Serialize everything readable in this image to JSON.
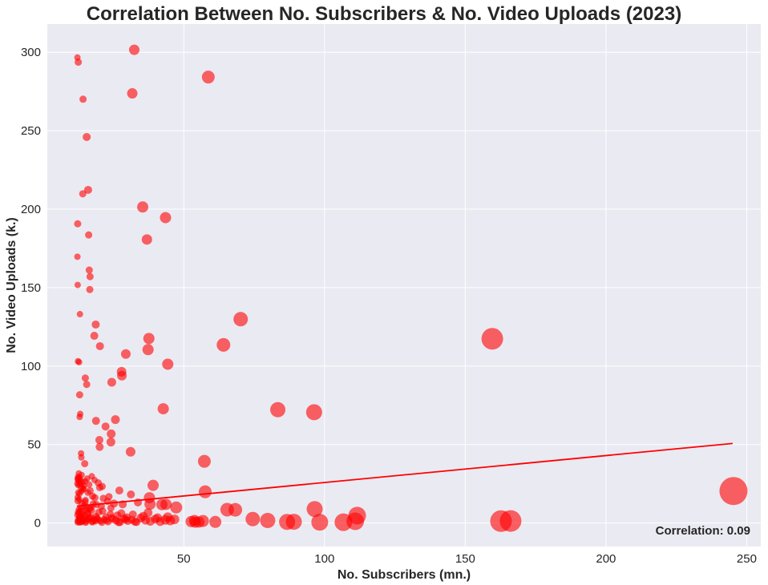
{
  "chart_data": {
    "type": "scatter",
    "title": "Correlation Between No. Subscribers & No. Video Uploads (2023)",
    "xlabel": "No. Subscribers (mn.)",
    "ylabel": "No. Video Uploads (k.)",
    "xlim": [
      1.5,
      255
    ],
    "ylim": [
      -15,
      318
    ],
    "xticks": [
      50,
      100,
      150,
      200,
      250
    ],
    "yticks": [
      0,
      50,
      100,
      150,
      200,
      250,
      300
    ],
    "grid": true,
    "background_color": "#EAEAF2",
    "point_color": "#FF0000",
    "trend_color": "#FF0000",
    "annotation": "Correlation: 0.09",
    "trendline": {
      "x": [
        12,
        245
      ],
      "y": [
        10.7,
        50.7
      ]
    },
    "series": [
      {
        "x": [
          12.5,
          13.3,
          14.2,
          15.1,
          16.3,
          17.5,
          18.2,
          19.1,
          20.4,
          21.8,
          23.1,
          24.6,
          25.9,
          27.3,
          28.8,
          30.1,
          31.5,
          33.2,
          34.8,
          36.4,
          38.1,
          39.9,
          41.6,
          43.4,
          45.2,
          46.7,
          13.1,
          14.8,
          16.9,
          18.7,
          22.3,
          26.4,
          29.7,
          35.6,
          40.7,
          44.3,
          12.9,
          13.8,
          15.6,
          17.2,
          19.8,
          21.2,
          23.9,
          27.8,
          31.9,
          37.3,
          15.4,
          16.5,
          18.9,
          20.7,
          24.1,
          12.4,
          13.7,
          14.9,
          17.8,
          22.9,
          25.2,
          28.3,
          33.7,
          12.3,
          12.6,
          12.8,
          13.0,
          13.3,
          13.6,
          13.9,
          14.3,
          14.7,
          15.2,
          15.8,
          16.6,
          17.4,
          18.6,
          19.4,
          20.9,
          22.6,
          24.4,
          26.8,
          29.3,
          32.6,
          12.2,
          12.4,
          12.7,
          13.1,
          13.5,
          14.0,
          14.6,
          15.3,
          16.1,
          17.0,
          52.6,
          54.1,
          56.8,
          61.2,
          53.8,
          55.4,
          12.3,
          12.9,
          13.6,
          14.5,
          15.9,
          17.6,
          20.1,
          23.4,
          27.1,
          31.2,
          12.2,
          12.3,
          12.4,
          12.5,
          12.7,
          12.8,
          13.0,
          13.2,
          13.4,
          13.7,
          14.1,
          14.5,
          15.0,
          15.7,
          16.4,
          17.3,
          18.3,
          19.6,
          21.0,
          12.5,
          14.2,
          16.7,
          12.8,
          15.1,
          18.4,
          21.4
        ],
        "y": [
          1.5,
          0.9,
          2.4,
          1.2,
          2.8,
          0.7,
          1.9,
          3.1,
          1.4,
          2.2,
          0.8,
          2.6,
          1.7,
          0.5,
          2.9,
          1.3,
          2.1,
          0.6,
          3.2,
          1.8,
          1.1,
          2.5,
          0.9,
          2.0,
          1.6,
          2.3,
          3.8,
          4.6,
          3.5,
          4.2,
          3.9,
          4.8,
          3.6,
          4.3,
          3.3,
          3.7,
          5.9,
          7.2,
          6.4,
          8.1,
          6.9,
          7.6,
          5.7,
          6.2,
          5.4,
          6.6,
          10.3,
          9.1,
          11.8,
          10.7,
          9.6,
          14.2,
          12.6,
          13.4,
          12.1,
          13.8,
          12.4,
          11.9,
          13.1,
          0.4,
          1.8,
          3.4,
          0.3,
          2.7,
          4.1,
          0.6,
          1.6,
          3.0,
          0.2,
          2.0,
          3.6,
          0.9,
          1.3,
          2.5,
          0.4,
          1.7,
          3.3,
          0.5,
          2.2,
          0.8,
          5.1,
          6.8,
          8.6,
          7.9,
          9.4,
          5.6,
          10.9,
          8.3,
          6.1,
          9.8,
          0.9,
          0.5,
          1.3,
          0.7,
          1.6,
          0.6,
          16.4,
          18.6,
          20.2,
          21.9,
          19.3,
          17.1,
          22.6,
          16.8,
          20.7,
          18.2,
          25.1,
          27.8,
          29.4,
          24.2,
          31.6,
          26.3,
          28.9,
          24.7,
          27.1,
          30.6,
          25.9,
          23.8,
          26.6,
          28.3,
          24.5,
          29.8,
          27.4,
          25.6,
          23.3,
          19.4,
          21.3,
          20.6,
          15.2,
          14.6,
          16.1,
          15.7
        ],
        "sizes": [
          9,
          9,
          9,
          9,
          9,
          9,
          9,
          9,
          9,
          9,
          9,
          10,
          10,
          10,
          10,
          10,
          10,
          10,
          11,
          11,
          11,
          11,
          11,
          12,
          12,
          12,
          9,
          9,
          9,
          9,
          9,
          10,
          10,
          11,
          11,
          12,
          9,
          9,
          9,
          9,
          9,
          9,
          9,
          10,
          10,
          11,
          9,
          9,
          9,
          9,
          9,
          9,
          9,
          9,
          9,
          9,
          10,
          10,
          10,
          8,
          8,
          8,
          8,
          8,
          8,
          8,
          8,
          8,
          8,
          8,
          8,
          8,
          9,
          9,
          9,
          9,
          9,
          10,
          10,
          10,
          8,
          8,
          8,
          8,
          8,
          8,
          8,
          8,
          8,
          8,
          14,
          14,
          15,
          15,
          14,
          14,
          8,
          8,
          8,
          8,
          8,
          9,
          9,
          9,
          10,
          10,
          8,
          8,
          8,
          8,
          8,
          8,
          8,
          8,
          8,
          8,
          8,
          8,
          8,
          8,
          8,
          8,
          8,
          9,
          9,
          8,
          8,
          9,
          8,
          8,
          9,
          9
        ],
        "opacity": 0.6
      },
      {
        "x": [
          12.2,
          12.5,
          12.3,
          12.2,
          12.3,
          12.4,
          13.1,
          12.8,
          13.0,
          13.2,
          13.0,
          13.5,
          13.6,
          14.2,
          15.5,
          16.0,
          16.2,
          16.7,
          14.1,
          16.4,
          16.6,
          15.0,
          15.5,
          14.8,
          18.7,
          18.2,
          12.5,
          13.6,
          20.2,
          18.8,
          20.0,
          20.1,
          22.2,
          24.2,
          24.4,
          25.7,
          24.1,
          29.4,
          28.0,
          27.9,
          31.1,
          32.4,
          31.7,
          36.9,
          35.4,
          37.6,
          37.3,
          43.5,
          44.3,
          42.7,
          39.1,
          37.8,
          38.0,
          43.7,
          42.2,
          47.3,
          58.7,
          57.3,
          57.6,
          64.1,
          65.4,
          70.2,
          68.3,
          83.4,
          96.3,
          96.5,
          74.5,
          79.8,
          86.7,
          89.1,
          98.3,
          106.7,
          111.6,
          110.9,
          159.6,
          162.7,
          166.1,
          245.3
        ],
        "y": [
          296.7,
          293.7,
          190.7,
          169.7,
          151.7,
          103.1,
          133.1,
          102.5,
          81.7,
          69.5,
          67.6,
          44.4,
          41.8,
          270.1,
          246.0,
          212.3,
          183.6,
          157.0,
          209.8,
          161.2,
          148.8,
          92.4,
          88.3,
          37.8,
          126.5,
          119.3,
          28.2,
          22.6,
          112.7,
          65.1,
          52.9,
          48.5,
          61.5,
          56.8,
          89.7,
          65.9,
          51.6,
          107.7,
          93.9,
          96.4,
          45.4,
          301.6,
          273.8,
          180.7,
          201.4,
          117.6,
          110.5,
          194.6,
          101.2,
          72.8,
          24.0,
          16.1,
          12.0,
          11.9,
          11.7,
          9.9,
          284.2,
          39.3,
          19.9,
          113.5,
          8.5,
          129.9,
          8.4,
          72.2,
          70.6,
          8.9,
          2.5,
          1.6,
          0.7,
          0.8,
          0.5,
          0.5,
          4.7,
          1.1,
          117.4,
          1.2,
          1.3,
          20.4
        ],
        "sizes": [
          8,
          9,
          9,
          8,
          8,
          8,
          8,
          8,
          9,
          8,
          8,
          8,
          8,
          9,
          10,
          10,
          9,
          9,
          9,
          9,
          9,
          9,
          9,
          9,
          10,
          10,
          9,
          9,
          10,
          10,
          10,
          10,
          10,
          11,
          11,
          11,
          11,
          12,
          12,
          12,
          12,
          13,
          13,
          13,
          14,
          14,
          14,
          14,
          14,
          14,
          14,
          14,
          14,
          14,
          14,
          15,
          16,
          16,
          16,
          17,
          17,
          18,
          17,
          19,
          20,
          20,
          18,
          19,
          20,
          20,
          21,
          22,
          22,
          22,
          27,
          27,
          27,
          35
        ],
        "opacity": 0.6
      }
    ]
  }
}
